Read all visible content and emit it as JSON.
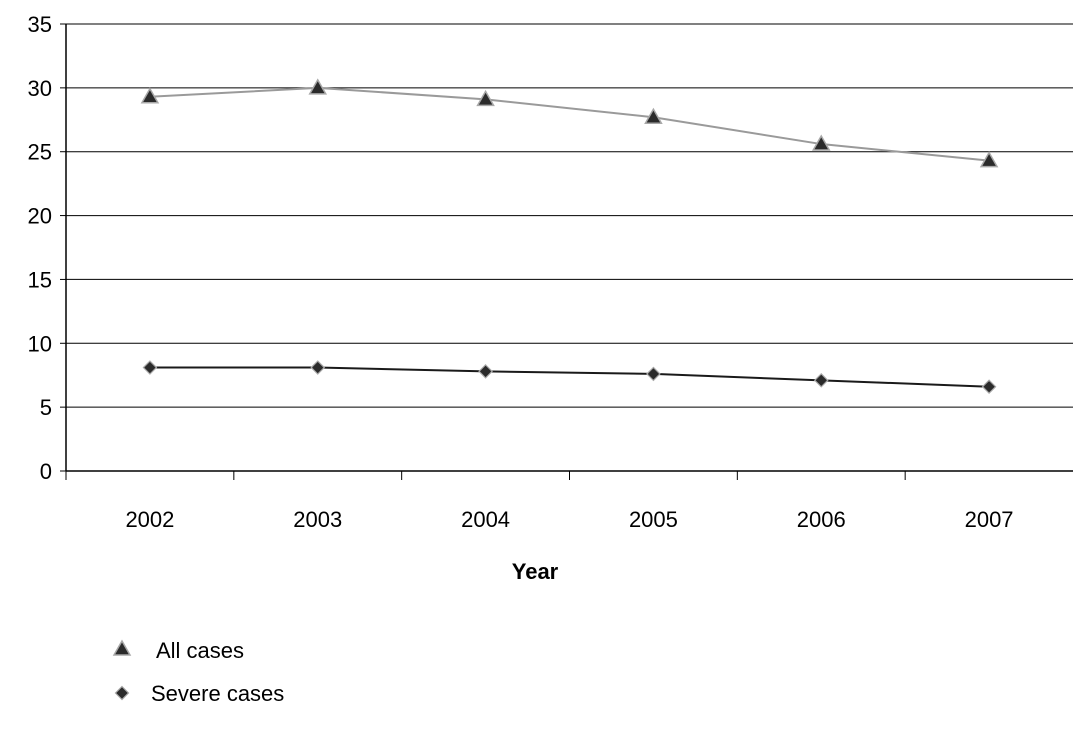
{
  "chart_data": {
    "type": "line",
    "title": "",
    "xlabel": "Year",
    "ylabel": "",
    "categories": [
      "2002",
      "2003",
      "2004",
      "2005",
      "2006",
      "2007"
    ],
    "ylim": [
      0,
      35
    ],
    "yticks": [
      0,
      5,
      10,
      15,
      20,
      25,
      30,
      35
    ],
    "grid": true,
    "legend_position": "bottom-left",
    "series": [
      {
        "name": "All cases",
        "marker": "triangle",
        "line_color": "#9a9a9a",
        "marker_color": "#2b2b2b",
        "values": [
          29.3,
          30.0,
          29.1,
          27.7,
          25.6,
          24.3
        ]
      },
      {
        "name": "Severe cases",
        "marker": "diamond",
        "line_color": "#1a1a1a",
        "marker_color": "#2b2b2b",
        "values": [
          8.1,
          8.1,
          7.8,
          7.6,
          7.1,
          6.6
        ]
      }
    ]
  }
}
